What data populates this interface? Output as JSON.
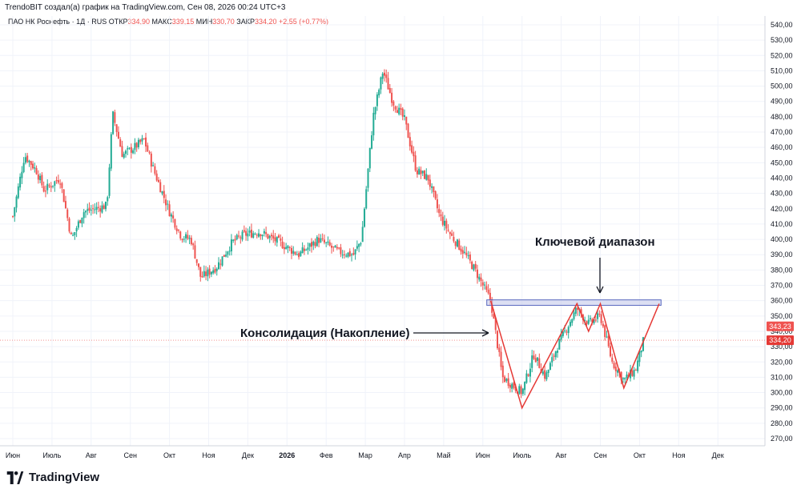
{
  "header": {
    "credit": "TrendoBIT создал(а) график на TradingView.com, Сен 08, 2026 00:24 UTC+3",
    "symbol": "ПАО НК Роснефть · 1Д · RUS",
    "open_label": "ОТКР",
    "open_value": "334,90",
    "high_label": "МАКС",
    "high_value": "339,15",
    "low_label": "МИН",
    "low_value": "330,70",
    "close_label": "ЗАКР",
    "close_value": "334,20",
    "change": "+2,55 (+0,77%)"
  },
  "brand": {
    "name": "TradingView"
  },
  "annotations": {
    "consolidation": "Консолидация (Накопление)",
    "key_range": "Ключевой диапазон"
  },
  "colors": {
    "up": "#22ab94",
    "down": "#ef5350",
    "pattern_line": "#e53935",
    "key_range_fill": "#c5cae9",
    "key_range_border": "#5c6bc0",
    "price_badge_1": "#ef5350",
    "price_badge_2": "#e53935"
  },
  "chart_data": {
    "type": "candlestick",
    "x_tick_labels": [
      "Июн",
      "Июль",
      "Авг",
      "Сен",
      "Окт",
      "Ноя",
      "Дек",
      "2026",
      "Фев",
      "Мар",
      "Апр",
      "Май",
      "Июн",
      "Июль",
      "Авг",
      "Сен",
      "Окт",
      "Ноя",
      "Дек"
    ],
    "y_ticks": [
      540,
      530,
      520,
      510,
      500,
      490,
      480,
      470,
      460,
      450,
      440,
      430,
      420,
      410,
      400,
      390,
      380,
      370,
      360,
      350,
      340,
      330,
      320,
      310,
      300,
      290,
      280,
      270
    ],
    "y_tick_labels": [
      "540,00",
      "530,00",
      "520,00",
      "510,00",
      "500,00",
      "490,00",
      "480,00",
      "470,00",
      "460,00",
      "450,00",
      "440,00",
      "430,00",
      "420,00",
      "410,00",
      "400,00",
      "390,00",
      "380,00",
      "370,00",
      "360,00",
      "350,00",
      "340,00",
      "330,00",
      "320,00",
      "310,00",
      "300,00",
      "290,00",
      "280,00",
      "270,00"
    ],
    "ylim": [
      265,
      545
    ],
    "price_labels": [
      {
        "value": 343.23,
        "text": "343,23"
      },
      {
        "value": 334.2,
        "text": "334,20"
      }
    ],
    "key_range": {
      "from": 358,
      "to": 360
    },
    "pattern_path": [
      {
        "month": 12.2,
        "value": 360
      },
      {
        "month": 13.0,
        "value": 290
      },
      {
        "month": 14.4,
        "value": 358
      },
      {
        "month": 14.7,
        "value": 340
      },
      {
        "month": 15.0,
        "value": 358
      },
      {
        "month": 15.6,
        "value": 303
      },
      {
        "month": 16.5,
        "value": 358
      }
    ],
    "price_path": [
      {
        "month": 0.0,
        "value": 415
      },
      {
        "month": 0.3,
        "value": 455
      },
      {
        "month": 0.6,
        "value": 445
      },
      {
        "month": 0.8,
        "value": 432
      },
      {
        "month": 1.2,
        "value": 440
      },
      {
        "month": 1.5,
        "value": 400
      },
      {
        "month": 1.8,
        "value": 418
      },
      {
        "month": 2.1,
        "value": 420
      },
      {
        "month": 2.4,
        "value": 422
      },
      {
        "month": 2.55,
        "value": 482
      },
      {
        "month": 2.8,
        "value": 455
      },
      {
        "month": 3.1,
        "value": 460
      },
      {
        "month": 3.35,
        "value": 465
      },
      {
        "month": 3.6,
        "value": 445
      },
      {
        "month": 4.0,
        "value": 418
      },
      {
        "month": 4.3,
        "value": 402
      },
      {
        "month": 4.55,
        "value": 400
      },
      {
        "month": 4.8,
        "value": 375
      },
      {
        "month": 5.2,
        "value": 382
      },
      {
        "month": 5.6,
        "value": 398
      },
      {
        "month": 5.9,
        "value": 403
      },
      {
        "month": 6.3,
        "value": 405
      },
      {
        "month": 6.8,
        "value": 398
      },
      {
        "month": 7.3,
        "value": 390
      },
      {
        "month": 7.8,
        "value": 400
      },
      {
        "month": 8.3,
        "value": 392
      },
      {
        "month": 8.7,
        "value": 390
      },
      {
        "month": 8.9,
        "value": 400
      },
      {
        "month": 9.05,
        "value": 440
      },
      {
        "month": 9.2,
        "value": 480
      },
      {
        "month": 9.45,
        "value": 510
      },
      {
        "month": 9.7,
        "value": 490
      },
      {
        "month": 10.0,
        "value": 478
      },
      {
        "month": 10.3,
        "value": 445
      },
      {
        "month": 10.6,
        "value": 440
      },
      {
        "month": 10.9,
        "value": 415
      },
      {
        "month": 11.2,
        "value": 402
      },
      {
        "month": 11.5,
        "value": 392
      },
      {
        "month": 11.8,
        "value": 380
      },
      {
        "month": 12.2,
        "value": 360
      },
      {
        "month": 12.5,
        "value": 310
      },
      {
        "month": 13.0,
        "value": 300
      },
      {
        "month": 13.3,
        "value": 325
      },
      {
        "month": 13.6,
        "value": 310
      },
      {
        "month": 13.9,
        "value": 330
      },
      {
        "month": 14.4,
        "value": 355
      },
      {
        "month": 14.7,
        "value": 345
      },
      {
        "month": 15.0,
        "value": 350
      },
      {
        "month": 15.3,
        "value": 320
      },
      {
        "month": 15.6,
        "value": 308
      },
      {
        "month": 15.9,
        "value": 315
      },
      {
        "month": 16.1,
        "value": 334
      }
    ]
  }
}
